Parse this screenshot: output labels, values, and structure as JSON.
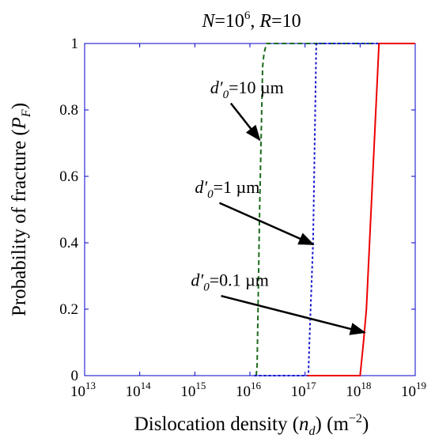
{
  "chart_data": {
    "type": "line",
    "title": {
      "n_label": "N",
      "n_base": "=10",
      "n_exp": "6",
      "sep": ", ",
      "r_label": "R",
      "r_val": "=10"
    },
    "xlabel": {
      "text": "Dislocation density (",
      "var": "n",
      "sub": "d",
      "unit_open": ") (m",
      "unit_exp": "−2",
      "unit_close": ")"
    },
    "ylabel": {
      "text": "Probability of fracture (",
      "var": "P",
      "sub": "F",
      "close": ")"
    },
    "xscale": "log",
    "xlim": [
      10000000000000.0,
      1e+19
    ],
    "ylim": [
      0,
      1
    ],
    "xticks": [
      {
        "v": 10000000000000.0,
        "base": "10",
        "exp": "13"
      },
      {
        "v": 100000000000000.0,
        "base": "10",
        "exp": "14"
      },
      {
        "v": 1000000000000000.0,
        "base": "10",
        "exp": "15"
      },
      {
        "v": 1e+16,
        "base": "10",
        "exp": "16"
      },
      {
        "v": 1e+17,
        "base": "10",
        "exp": "17"
      },
      {
        "v": 1e+18,
        "base": "10",
        "exp": "18"
      },
      {
        "v": 1e+19,
        "base": "10",
        "exp": "19"
      }
    ],
    "yticks": [
      {
        "v": 0,
        "label": "0"
      },
      {
        "v": 0.2,
        "label": "0.2"
      },
      {
        "v": 0.4,
        "label": "0.4"
      },
      {
        "v": 0.6,
        "label": "0.6"
      },
      {
        "v": 0.8,
        "label": "0.8"
      },
      {
        "v": 1,
        "label": "1"
      }
    ],
    "grid": false,
    "series": [
      {
        "color": "#1a6b1a",
        "dash": "dashed",
        "x": [
          1.3e+16,
          1.35e+16,
          1.5e+16,
          1.7e+16,
          1.8e+16,
          2e+16,
          1e+19
        ],
        "y": [
          0,
          0.03,
          0.5,
          0.93,
          0.97,
          1,
          1
        ]
      },
      {
        "color": "#1010cc",
        "dash": "dotted",
        "x": [
          1.2e+16,
          1.15e+17,
          1.2e+17,
          1.4e+17,
          1.6e+17,
          1e+19
        ],
        "y": [
          0,
          0,
          0.1,
          0.4,
          1,
          1
        ]
      },
      {
        "color": "#ee0000",
        "dash": "solid",
        "x": [
          1.1e+17,
          1e+18,
          1.15e+18,
          1.3e+18,
          2.2e+18,
          1e+19
        ],
        "y": [
          0,
          0,
          0.1,
          0.2,
          1,
          1
        ]
      }
    ],
    "annotations": [
      {
        "d": "d",
        "prime": "′",
        "sub": "0",
        "val": "=10 µm",
        "target_x": 1.5e+16,
        "target_y": 0.71,
        "text_x": 1900000000000000.0,
        "text_y": 0.85,
        "arrow_from_x": 4500000000000000.0,
        "arrow_from_y": 0.82
      },
      {
        "d": "d",
        "prime": "′",
        "sub": "0",
        "val": "=1 µm",
        "target_x": 1.4e+17,
        "target_y": 0.395,
        "text_x": 1000000000000000.0,
        "text_y": 0.55,
        "arrow_from_x": 2800000000000000.0,
        "arrow_from_y": 0.52
      },
      {
        "d": "d",
        "prime": "′",
        "sub": "0",
        "val": "=0.1 µm",
        "target_x": 1.2e+18,
        "target_y": 0.13,
        "text_x": 850000000000000.0,
        "text_y": 0.27,
        "arrow_from_x": 3000000000000000.0,
        "arrow_from_y": 0.24
      }
    ],
    "colors": {
      "axes": "#0000cc",
      "text": "#000000",
      "arrow": "#000000"
    }
  }
}
